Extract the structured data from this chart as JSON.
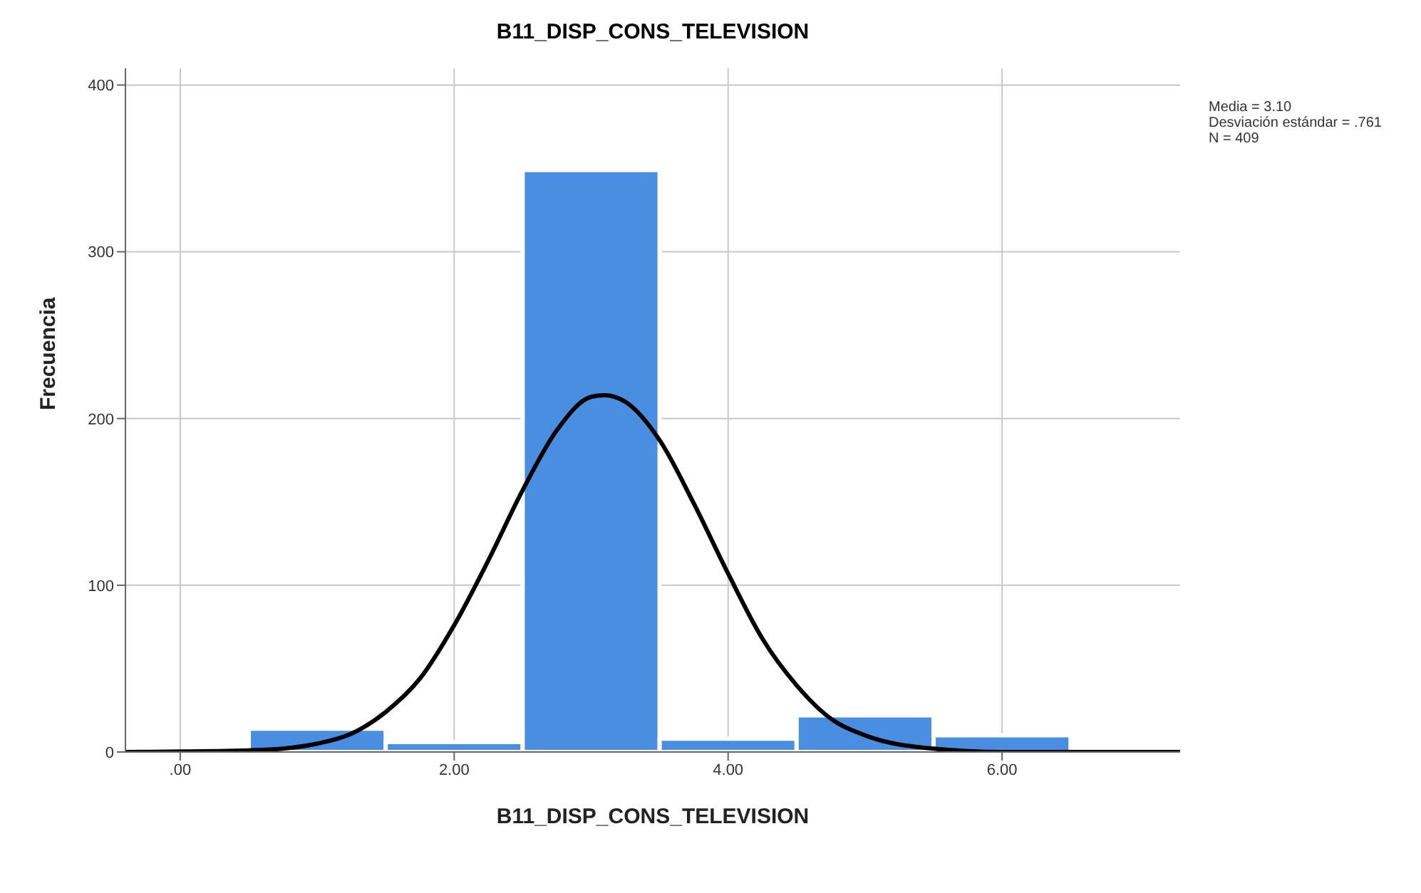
{
  "chart_data": {
    "type": "histogram",
    "title": "B11_DISP_CONS_TELEVISION",
    "xlabel": "B11_DISP_CONS_TELEVISION",
    "ylabel": "Frecuencia",
    "annotations": [
      "Media = 3.10",
      "Desviación estándar = .761",
      "N = 409"
    ],
    "series": [
      {
        "color": "#4a8ee2",
        "bins": [
          0.5,
          1.5,
          2.5,
          3.5,
          4.5,
          5.5,
          6.5
        ],
        "values": [
          14,
          6,
          349,
          8,
          22,
          10
        ]
      },
      {
        "type": "line",
        "color": "#000000",
        "x": [
          -0.4,
          0.5,
          0.75,
          1,
          1.25,
          1.5,
          1.75,
          2,
          2.25,
          2.5,
          2.75,
          3,
          3.1,
          3.25,
          3.5,
          3.75,
          4,
          4.25,
          4.5,
          4.75,
          5,
          5.5,
          6,
          7.3
        ],
        "values": [
          0,
          1,
          2,
          5,
          11,
          24,
          44,
          76,
          115,
          157,
          193,
          213,
          214,
          210,
          187,
          149,
          107,
          68,
          40,
          20,
          10,
          2,
          0,
          0
        ]
      }
    ],
    "xlim": [
      -0.4,
      7.3
    ],
    "xticks": [
      {
        "value": 0,
        "label": ".00"
      },
      {
        "value": 2,
        "label": "2.00"
      },
      {
        "value": 4,
        "label": "4.00"
      },
      {
        "value": 6,
        "label": "6.00"
      }
    ],
    "ylim": [
      0,
      410
    ],
    "yticks": [
      0,
      100,
      200,
      300,
      400
    ],
    "grid": true
  }
}
